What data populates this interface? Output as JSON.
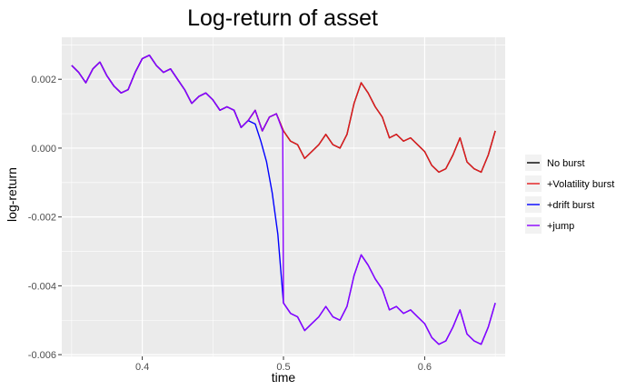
{
  "chart_data": {
    "type": "line",
    "title": "Log-return of asset",
    "xlabel": "time",
    "ylabel": "log-return",
    "xlim": [
      0.343,
      0.657
    ],
    "ylim": [
      -0.00605,
      0.00322
    ],
    "x_ticks": [
      0.4,
      0.5,
      0.6
    ],
    "x_tick_labels": [
      "0.4",
      "0.5",
      "0.6"
    ],
    "y_ticks": [
      0.002,
      0.0,
      -0.002,
      -0.004,
      -0.006
    ],
    "y_tick_labels": [
      "0.002",
      "0.000",
      "-0.002",
      "-0.004",
      "-0.006"
    ],
    "grid": true,
    "legend_position": "right",
    "legend": [
      "No burst",
      "+Volatility burst",
      "+drift burst",
      "+jump"
    ],
    "colors": {
      "No burst": "#000000",
      "+Volatility burst": "#e41a1c",
      "+drift burst": "#0000ff",
      "+jump": "#8b00ff",
      "panel": "#ebebeb",
      "grid": "#ffffff"
    },
    "series": [
      {
        "name": "No burst",
        "x": [
          0.35,
          0.355,
          0.36,
          0.365,
          0.37,
          0.375,
          0.38,
          0.385,
          0.39,
          0.395,
          0.4,
          0.405,
          0.41,
          0.415,
          0.42,
          0.425,
          0.43,
          0.435,
          0.44,
          0.445,
          0.45,
          0.455,
          0.46,
          0.465,
          0.47,
          0.475,
          0.48,
          0.485,
          0.49,
          0.495,
          0.5,
          0.505,
          0.51,
          0.515,
          0.52,
          0.525,
          0.53,
          0.535,
          0.54,
          0.545,
          0.55,
          0.555,
          0.56,
          0.565,
          0.57,
          0.575,
          0.58,
          0.585,
          0.59,
          0.595,
          0.6,
          0.605,
          0.61,
          0.615,
          0.62,
          0.625,
          0.63,
          0.635,
          0.64,
          0.645,
          0.65
        ],
        "y": [
          0.0024,
          0.0022,
          0.0019,
          0.0023,
          0.0025,
          0.0021,
          0.0018,
          0.0016,
          0.0017,
          0.0022,
          0.0026,
          0.0027,
          0.0024,
          0.0022,
          0.0023,
          0.002,
          0.0017,
          0.0013,
          0.0015,
          0.0016,
          0.0014,
          0.0011,
          0.0012,
          0.0011,
          0.0006,
          0.0008,
          0.0011,
          0.0005,
          0.0009,
          0.001,
          0.0005,
          0.0002,
          0.0001,
          -0.0003,
          -0.0001,
          0.0001,
          0.0004,
          0.0001,
          0.0,
          0.0004,
          0.0013,
          0.0019,
          0.0016,
          0.0012,
          0.0009,
          0.0003,
          0.0004,
          0.0002,
          0.0003,
          0.0001,
          -0.0001,
          -0.0005,
          -0.0007,
          -0.0006,
          -0.0002,
          0.0003,
          -0.0004,
          -0.0006,
          -0.0007,
          -0.0002,
          0.0005
        ]
      },
      {
        "name": "+Volatility burst",
        "x": [
          0.35,
          0.355,
          0.36,
          0.365,
          0.37,
          0.375,
          0.38,
          0.385,
          0.39,
          0.395,
          0.4,
          0.405,
          0.41,
          0.415,
          0.42,
          0.425,
          0.43,
          0.435,
          0.44,
          0.445,
          0.45,
          0.455,
          0.46,
          0.465,
          0.47,
          0.475,
          0.48,
          0.485,
          0.49,
          0.495,
          0.5,
          0.505,
          0.51,
          0.515,
          0.52,
          0.525,
          0.53,
          0.535,
          0.54,
          0.545,
          0.55,
          0.555,
          0.56,
          0.565,
          0.57,
          0.575,
          0.58,
          0.585,
          0.59,
          0.595,
          0.6,
          0.605,
          0.61,
          0.615,
          0.62,
          0.625,
          0.63,
          0.635,
          0.64,
          0.645,
          0.65
        ],
        "y": [
          0.0024,
          0.0022,
          0.0019,
          0.0023,
          0.0025,
          0.0021,
          0.0018,
          0.0016,
          0.0017,
          0.0022,
          0.0026,
          0.0027,
          0.0024,
          0.0022,
          0.0023,
          0.002,
          0.0017,
          0.0013,
          0.0015,
          0.0016,
          0.0014,
          0.0011,
          0.0012,
          0.0011,
          0.0006,
          0.0008,
          0.0011,
          0.0005,
          0.0009,
          0.001,
          0.0005,
          0.0002,
          0.0001,
          -0.0003,
          -0.0001,
          0.0001,
          0.0004,
          0.0001,
          0.0,
          0.0004,
          0.0013,
          0.0019,
          0.0016,
          0.0012,
          0.0009,
          0.0003,
          0.0004,
          0.0002,
          0.0003,
          0.0001,
          -0.0001,
          -0.0005,
          -0.0007,
          -0.0006,
          -0.0002,
          0.0003,
          -0.0004,
          -0.0006,
          -0.0007,
          -0.0002,
          0.0005
        ]
      },
      {
        "name": "+drift burst",
        "x": [
          0.35,
          0.355,
          0.36,
          0.365,
          0.37,
          0.375,
          0.38,
          0.385,
          0.39,
          0.395,
          0.4,
          0.405,
          0.41,
          0.415,
          0.42,
          0.425,
          0.43,
          0.435,
          0.44,
          0.445,
          0.45,
          0.455,
          0.46,
          0.465,
          0.47,
          0.475,
          0.48,
          0.484,
          0.488,
          0.492,
          0.496,
          0.5,
          0.505,
          0.51,
          0.515,
          0.52,
          0.525,
          0.53,
          0.535,
          0.54,
          0.545,
          0.55,
          0.555,
          0.56,
          0.565,
          0.57,
          0.575,
          0.58,
          0.585,
          0.59,
          0.595,
          0.6,
          0.605,
          0.61,
          0.615,
          0.62,
          0.625,
          0.63,
          0.635,
          0.64,
          0.645,
          0.65
        ],
        "y": [
          0.0024,
          0.0022,
          0.0019,
          0.0023,
          0.0025,
          0.0021,
          0.0018,
          0.0016,
          0.0017,
          0.0022,
          0.0026,
          0.0027,
          0.0024,
          0.0022,
          0.0023,
          0.002,
          0.0017,
          0.0013,
          0.0015,
          0.0016,
          0.0014,
          0.0011,
          0.0012,
          0.0011,
          0.0006,
          0.0008,
          0.0007,
          0.0002,
          -0.0004,
          -0.0013,
          -0.0025,
          -0.0045,
          -0.0048,
          -0.0049,
          -0.0053,
          -0.0051,
          -0.0049,
          -0.0046,
          -0.0049,
          -0.005,
          -0.0046,
          -0.0037,
          -0.0031,
          -0.0034,
          -0.0038,
          -0.0041,
          -0.0047,
          -0.0046,
          -0.0048,
          -0.0047,
          -0.0049,
          -0.0051,
          -0.0055,
          -0.0057,
          -0.0056,
          -0.0052,
          -0.0047,
          -0.0054,
          -0.0056,
          -0.0057,
          -0.0052,
          -0.0045
        ]
      },
      {
        "name": "+jump",
        "x": [
          0.35,
          0.355,
          0.36,
          0.365,
          0.37,
          0.375,
          0.38,
          0.385,
          0.39,
          0.395,
          0.4,
          0.405,
          0.41,
          0.415,
          0.42,
          0.425,
          0.43,
          0.435,
          0.44,
          0.445,
          0.45,
          0.455,
          0.46,
          0.465,
          0.47,
          0.475,
          0.48,
          0.485,
          0.49,
          0.495,
          0.4995,
          0.5,
          0.505,
          0.51,
          0.515,
          0.52,
          0.525,
          0.53,
          0.535,
          0.54,
          0.545,
          0.55,
          0.555,
          0.56,
          0.565,
          0.57,
          0.575,
          0.58,
          0.585,
          0.59,
          0.595,
          0.6,
          0.605,
          0.61,
          0.615,
          0.62,
          0.625,
          0.63,
          0.635,
          0.64,
          0.645,
          0.65
        ],
        "y": [
          0.0024,
          0.0022,
          0.0019,
          0.0023,
          0.0025,
          0.0021,
          0.0018,
          0.0016,
          0.0017,
          0.0022,
          0.0026,
          0.0027,
          0.0024,
          0.0022,
          0.0023,
          0.002,
          0.0017,
          0.0013,
          0.0015,
          0.0016,
          0.0014,
          0.0011,
          0.0012,
          0.0011,
          0.0006,
          0.0008,
          0.0011,
          0.0005,
          0.0009,
          0.001,
          0.0005,
          -0.0045,
          -0.0048,
          -0.0049,
          -0.0053,
          -0.0051,
          -0.0049,
          -0.0046,
          -0.0049,
          -0.005,
          -0.0046,
          -0.0037,
          -0.0031,
          -0.0034,
          -0.0038,
          -0.0041,
          -0.0047,
          -0.0046,
          -0.0048,
          -0.0047,
          -0.0049,
          -0.0051,
          -0.0055,
          -0.0057,
          -0.0056,
          -0.0052,
          -0.0047,
          -0.0054,
          -0.0056,
          -0.0057,
          -0.0052,
          -0.0045
        ]
      }
    ]
  }
}
